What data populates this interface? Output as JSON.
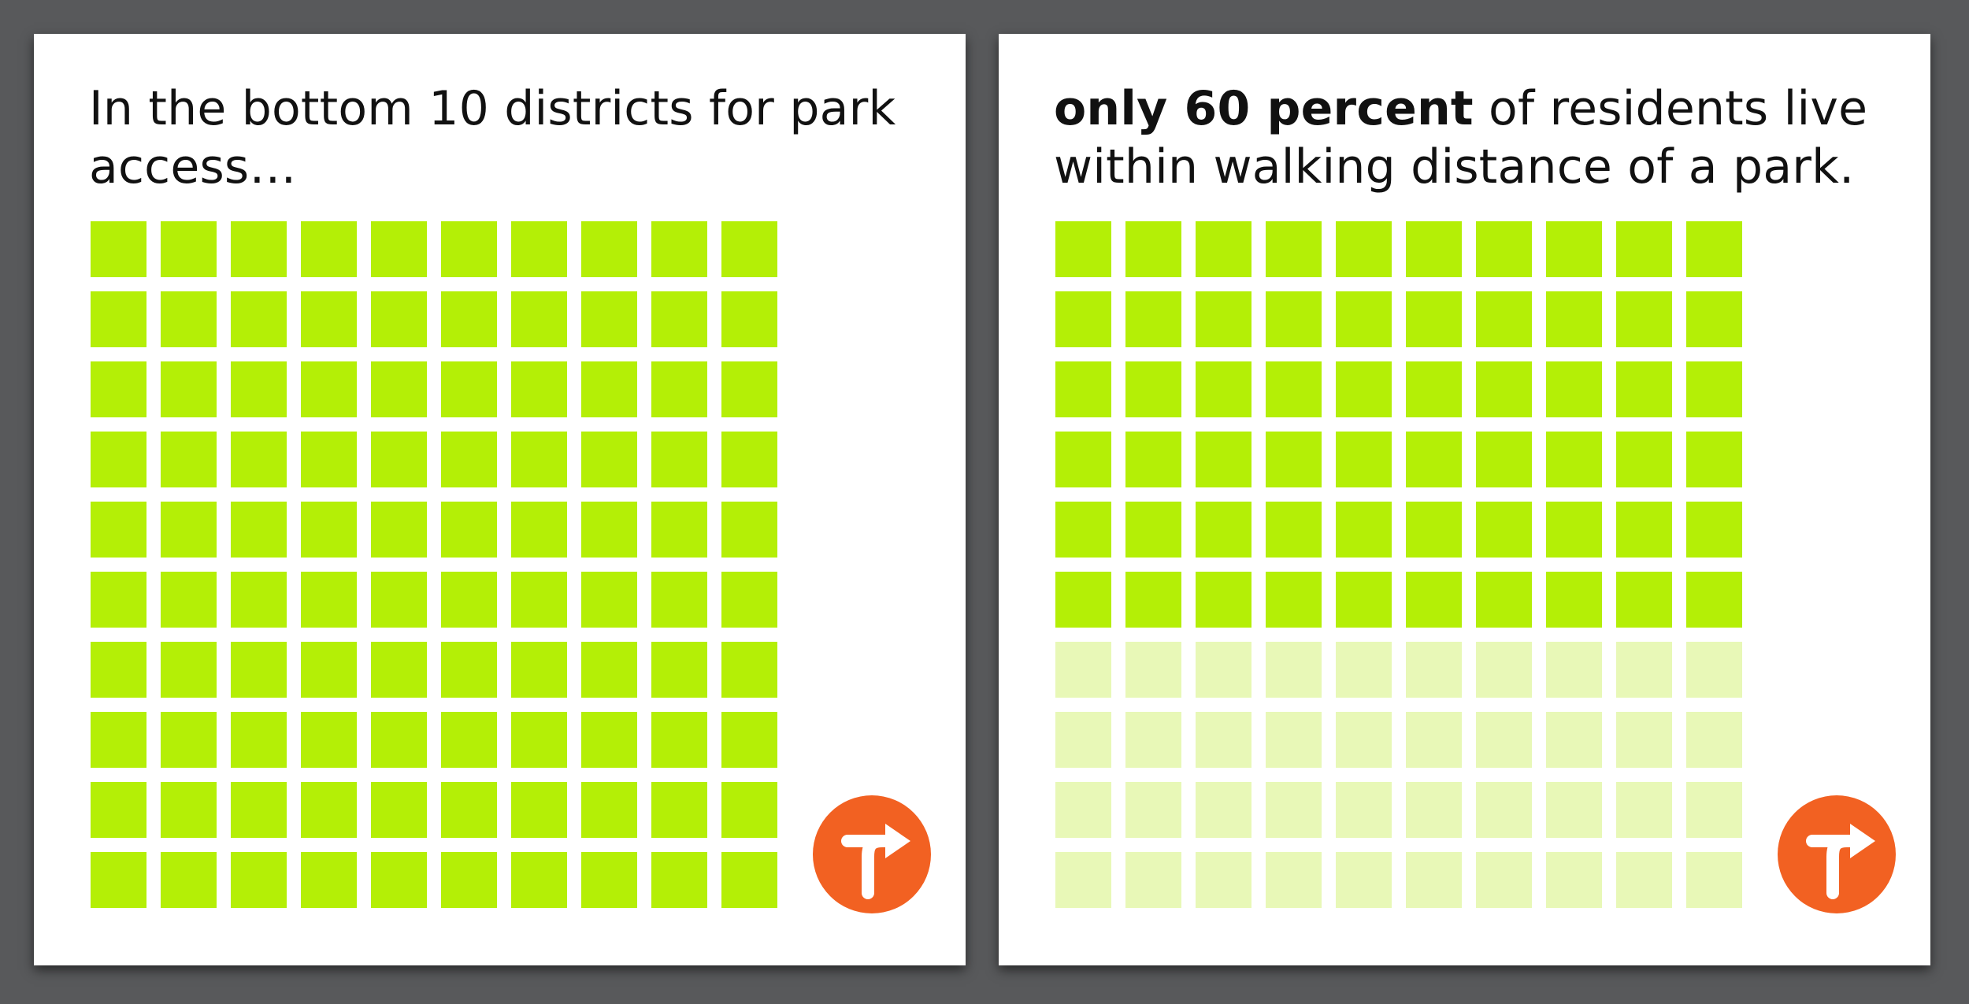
{
  "colors": {
    "background": "#58595b",
    "panel": "#ffffff",
    "square_filled": "#b4ef06",
    "square_faded": "#e8f8b7",
    "logo_circle": "#f26122",
    "logo_arrow": "#ffffff"
  },
  "panels": [
    {
      "caption_bold": "",
      "caption_rest": "In the bottom 10 districts for park access…",
      "logo_icon": "turn-right-arrow-icon"
    },
    {
      "caption_bold": "only 60 percent",
      "caption_rest": " of residents live within walking distance of a park.",
      "logo_icon": "turn-right-arrow-icon"
    }
  ],
  "chart_data": [
    {
      "type": "waffle",
      "rows": 10,
      "cols": 10,
      "total": 100,
      "filled": 100
    },
    {
      "type": "waffle",
      "rows": 10,
      "cols": 10,
      "total": 100,
      "filled": 60
    }
  ]
}
